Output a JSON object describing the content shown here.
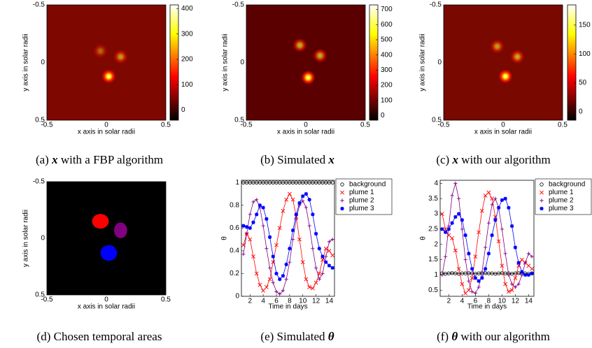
{
  "chart_data": [
    {
      "type": "heatmap",
      "caption": {
        "label": "(a)",
        "symbol": "x",
        "text": "with a FBP algorithm"
      },
      "xlabel": "x axis in solar radii",
      "ylabel": "y axis in solar radii",
      "xlim": [
        -0.5,
        0.5
      ],
      "ylim": [
        -0.5,
        0.5
      ],
      "yaxis_inverted": true,
      "xticks": [
        -0.5,
        0,
        0.5
      ],
      "yticks": [
        -0.5,
        0,
        0.5
      ],
      "background": "#7e0800",
      "clim": [
        -40,
        415
      ],
      "cticks": [
        0,
        100,
        200,
        300,
        400
      ],
      "sources": [
        {
          "x": 0.02,
          "y": 0.12,
          "intensity": 400
        },
        {
          "x": 0.12,
          "y": -0.05,
          "intensity": 220
        },
        {
          "x": -0.05,
          "y": -0.1,
          "intensity": 150
        }
      ]
    },
    {
      "type": "heatmap",
      "caption": {
        "label": "(b)",
        "text": "Simulated",
        "symbol": "x"
      },
      "xlabel": "x axis in solar radii",
      "ylabel": "y axis in solar radii",
      "xlim": [
        -0.5,
        0.5
      ],
      "ylim": [
        -0.5,
        0.5
      ],
      "yaxis_inverted": true,
      "xticks": [
        -0.5,
        0,
        0.5
      ],
      "yticks": [
        -0.5,
        0,
        0.5
      ],
      "background": "#5a0000",
      "clim": [
        -30,
        730
      ],
      "cticks": [
        0,
        100,
        200,
        300,
        400,
        500,
        600,
        700
      ],
      "sources": [
        {
          "x": 0.02,
          "y": 0.13,
          "intensity": 700
        },
        {
          "x": 0.12,
          "y": -0.06,
          "intensity": 450
        },
        {
          "x": -0.05,
          "y": -0.15,
          "intensity": 450
        }
      ]
    },
    {
      "type": "heatmap",
      "caption": {
        "label": "(c)",
        "symbol": "x",
        "text": "with our algorithm"
      },
      "xlabel": "x axis in solar radii",
      "ylabel": "y axis in solar radii",
      "xlim": [
        -0.5,
        0.5
      ],
      "ylim": [
        -0.5,
        0.5
      ],
      "yaxis_inverted": true,
      "xticks": [
        -0.5,
        0,
        0.5
      ],
      "yticks": [
        -0.5,
        0,
        0.5
      ],
      "background": "#780800",
      "clim": [
        -15,
        185
      ],
      "cticks": [
        0,
        50,
        100,
        150
      ],
      "sources": [
        {
          "x": 0.02,
          "y": 0.12,
          "intensity": 180
        },
        {
          "x": 0.12,
          "y": -0.05,
          "intensity": 110
        },
        {
          "x": -0.05,
          "y": -0.14,
          "intensity": 100
        }
      ]
    },
    {
      "type": "regions",
      "caption": {
        "label": "(d)",
        "text": "Chosen temporal areas"
      },
      "xlabel": "x axis in solar radii",
      "ylabel": "y axis in solar radii",
      "xlim": [
        -0.5,
        0.5
      ],
      "ylim": [
        -0.5,
        0.5
      ],
      "yaxis_inverted": true,
      "xticks": [
        -0.5,
        0,
        0.5
      ],
      "yticks": [
        -0.5,
        0,
        0.5
      ],
      "background": "#000000",
      "regions": [
        {
          "x": -0.05,
          "y": -0.15,
          "rx": 0.07,
          "ry": 0.065,
          "color": "#ff0000"
        },
        {
          "x": 0.12,
          "y": -0.07,
          "rx": 0.055,
          "ry": 0.07,
          "color": "#800080"
        },
        {
          "x": 0.02,
          "y": 0.13,
          "rx": 0.07,
          "ry": 0.07,
          "color": "#0000ff"
        }
      ]
    },
    {
      "type": "line",
      "caption": {
        "label": "(e)",
        "text": "Simulated",
        "symbol": "θ"
      },
      "xlabel": "Time in days",
      "ylabel": "θ",
      "xlim": [
        0.7,
        14.8
      ],
      "ylim": [
        0,
        1.02
      ],
      "xticks": [
        2,
        4,
        6,
        8,
        10,
        12,
        14
      ],
      "yticks": [
        0,
        0.2,
        0.4,
        0.6,
        0.8,
        1
      ],
      "legend": "upper right",
      "x": [
        1,
        1.5,
        2,
        2.5,
        3,
        3.5,
        4,
        4.5,
        5,
        5.5,
        6,
        6.5,
        7,
        7.5,
        8,
        8.5,
        9,
        9.5,
        10,
        10.5,
        11,
        11.5,
        12,
        12.5,
        13,
        13.5,
        14,
        14.5
      ],
      "series": [
        {
          "name": "background",
          "color": "#000000",
          "marker": "o",
          "values": [
            1,
            1,
            1,
            1,
            1,
            1,
            1,
            1,
            1,
            1,
            1,
            1,
            1,
            1,
            1,
            1,
            1,
            1,
            1,
            1,
            1,
            1,
            1,
            1,
            1,
            1,
            1,
            1
          ]
        },
        {
          "name": "plume 1",
          "color": "#ff0000",
          "marker": "x",
          "values": [
            0.45,
            0.55,
            0.5,
            0.35,
            0.2,
            0.1,
            0.05,
            0.08,
            0.15,
            0.3,
            0.45,
            0.6,
            0.75,
            0.85,
            0.9,
            0.85,
            0.7,
            0.5,
            0.3,
            0.15,
            0.08,
            0.07,
            0.12,
            0.2,
            0.32,
            0.42,
            0.4,
            0.36
          ]
        },
        {
          "name": "plume 2",
          "color": "#800080",
          "marker": "+",
          "values": [
            0.37,
            0.55,
            0.72,
            0.83,
            0.85,
            0.78,
            0.62,
            0.42,
            0.25,
            0.12,
            0.04,
            0.02,
            0.05,
            0.15,
            0.3,
            0.5,
            0.68,
            0.8,
            0.84,
            0.78,
            0.62,
            0.42,
            0.25,
            0.15,
            0.2,
            0.35,
            0.48,
            0.5
          ]
        },
        {
          "name": "plume 3",
          "color": "#0000ff",
          "marker": "*",
          "values": [
            0.62,
            0.61,
            0.6,
            0.65,
            0.72,
            0.8,
            0.78,
            0.68,
            0.52,
            0.35,
            0.2,
            0.15,
            0.18,
            0.28,
            0.42,
            0.58,
            0.72,
            0.82,
            0.88,
            0.9,
            0.85,
            0.72,
            0.55,
            0.42,
            0.35,
            0.3,
            0.27,
            0.25
          ]
        }
      ]
    },
    {
      "type": "line",
      "caption": {
        "label": "(f)",
        "symbol": "θ",
        "text": "with our algorithm"
      },
      "xlabel": "Time in days",
      "ylabel": "θ",
      "xlim": [
        0.7,
        14.8
      ],
      "ylim": [
        0.3,
        4.1
      ],
      "xticks": [
        2,
        4,
        6,
        8,
        10,
        12,
        14
      ],
      "yticks": [
        0.5,
        1,
        1.5,
        2,
        2.5,
        3,
        3.5,
        4
      ],
      "legend": "upper right",
      "x": [
        1,
        1.5,
        2,
        2.5,
        3,
        3.5,
        4,
        4.5,
        5,
        5.5,
        6,
        6.5,
        7,
        7.5,
        8,
        8.5,
        9,
        9.5,
        10,
        10.5,
        11,
        11.5,
        12,
        12.5,
        13,
        13.5,
        14,
        14.5
      ],
      "series": [
        {
          "name": "background",
          "color": "#000000",
          "marker": "o",
          "values": [
            1.05,
            1.04,
            1.05,
            1.06,
            1.05,
            1.04,
            1.05,
            1.05,
            1.06,
            1.05,
            1.04,
            1.05,
            1.05,
            1.06,
            1.05,
            1.05,
            1.04,
            1.05,
            1.06,
            1.05,
            1.05,
            1.04,
            1.05,
            1.06,
            1.05,
            1.05,
            1.04,
            1.05
          ]
        },
        {
          "name": "plume 1",
          "color": "#ff0000",
          "marker": "x",
          "values": [
            3.0,
            2.5,
            2.3,
            2.2,
            1.8,
            1.2,
            0.7,
            0.4,
            0.5,
            0.9,
            1.6,
            2.4,
            3.1,
            3.6,
            3.7,
            3.5,
            2.9,
            2.1,
            1.3,
            0.7,
            0.45,
            0.5,
            0.9,
            1.3,
            1.5,
            1.4,
            1.3,
            1.2
          ]
        },
        {
          "name": "plume 2",
          "color": "#800080",
          "marker": "+",
          "values": [
            1.0,
            1.6,
            2.6,
            3.6,
            4.0,
            3.5,
            2.5,
            1.5,
            0.8,
            0.45,
            0.4,
            0.6,
            1.1,
            1.9,
            2.7,
            3.3,
            3.5,
            3.2,
            2.5,
            1.7,
            1.0,
            0.7,
            0.6,
            0.7,
            1.0,
            1.4,
            1.7,
            1.6
          ]
        },
        {
          "name": "plume 3",
          "color": "#0000ff",
          "marker": "*",
          "values": [
            2.5,
            2.4,
            2.5,
            2.7,
            2.9,
            3.0,
            2.8,
            2.3,
            1.7,
            1.2,
            0.9,
            0.8,
            0.9,
            1.2,
            1.7,
            2.3,
            2.8,
            3.2,
            3.45,
            3.5,
            3.2,
            2.6,
            1.9,
            1.4,
            1.1,
            1.0,
            1.0,
            1.05
          ]
        }
      ]
    }
  ]
}
